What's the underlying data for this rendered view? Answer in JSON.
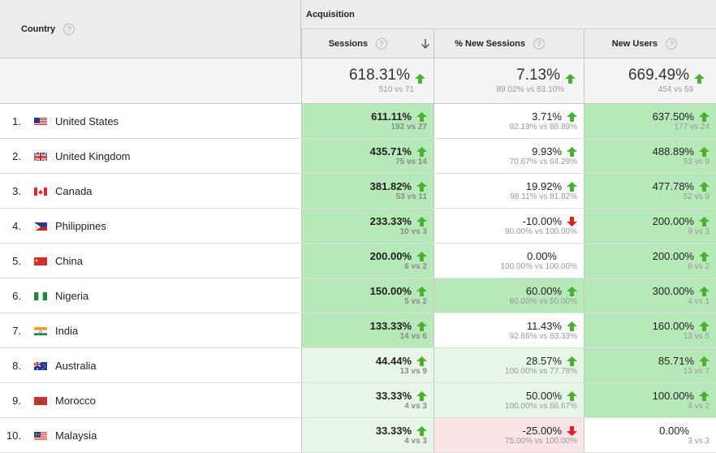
{
  "header": {
    "country": "Country",
    "group": "Acquisition",
    "col_sessions": "Sessions",
    "col_new_sessions": "% New Sessions",
    "col_new_users": "New Users",
    "help_glyph": "?"
  },
  "totals": {
    "sessions": {
      "value": "618.31%",
      "sub": "510 vs 71",
      "trend": "up"
    },
    "new_sessions": {
      "value": "7.13%",
      "sub": "89.02% vs 83.10%",
      "trend": "up"
    },
    "new_users": {
      "value": "669.49%",
      "sub": "454 vs 59",
      "trend": "up"
    }
  },
  "colors": {
    "up_arrow": "#4caf32",
    "down_arrow": "#e0211f",
    "strong_green": "#b6e8b8",
    "light_green": "#e8f6e8",
    "light_red": "#fbe4e6"
  },
  "rows": [
    {
      "rank": "1.",
      "country": "United States",
      "flag": "us",
      "sessions": {
        "value": "611.11%",
        "sub": "192 vs 27",
        "trend": "up",
        "bg": "strong"
      },
      "new_sessions": {
        "value": "3.71%",
        "sub": "92.19% vs 88.89%",
        "trend": "up",
        "bg": "none"
      },
      "new_users": {
        "value": "637.50%",
        "sub": "177 vs 24",
        "trend": "up",
        "bg": "strong"
      }
    },
    {
      "rank": "2.",
      "country": "United Kingdom",
      "flag": "gb",
      "sessions": {
        "value": "435.71%",
        "sub": "75 vs 14",
        "trend": "up",
        "bg": "strong"
      },
      "new_sessions": {
        "value": "9.93%",
        "sub": "70.67% vs 64.29%",
        "trend": "up",
        "bg": "none"
      },
      "new_users": {
        "value": "488.89%",
        "sub": "53 vs 9",
        "trend": "up",
        "bg": "strong"
      }
    },
    {
      "rank": "3.",
      "country": "Canada",
      "flag": "ca",
      "sessions": {
        "value": "381.82%",
        "sub": "53 vs 11",
        "trend": "up",
        "bg": "strong"
      },
      "new_sessions": {
        "value": "19.92%",
        "sub": "98.11% vs 81.82%",
        "trend": "up",
        "bg": "none"
      },
      "new_users": {
        "value": "477.78%",
        "sub": "52 vs 9",
        "trend": "up",
        "bg": "strong"
      }
    },
    {
      "rank": "4.",
      "country": "Philippines",
      "flag": "ph",
      "sessions": {
        "value": "233.33%",
        "sub": "10 vs 3",
        "trend": "up",
        "bg": "strong"
      },
      "new_sessions": {
        "value": "-10.00%",
        "sub": "90.00% vs 100.00%",
        "trend": "down",
        "bg": "none"
      },
      "new_users": {
        "value": "200.00%",
        "sub": "9 vs 3",
        "trend": "up",
        "bg": "strong"
      }
    },
    {
      "rank": "5.",
      "country": "China",
      "flag": "cn",
      "sessions": {
        "value": "200.00%",
        "sub": "6 vs 2",
        "trend": "up",
        "bg": "strong"
      },
      "new_sessions": {
        "value": "0.00%",
        "sub": "100.00% vs 100.00%",
        "trend": "none",
        "bg": "none"
      },
      "new_users": {
        "value": "200.00%",
        "sub": "6 vs 2",
        "trend": "up",
        "bg": "strong"
      }
    },
    {
      "rank": "6.",
      "country": "Nigeria",
      "flag": "ng",
      "sessions": {
        "value": "150.00%",
        "sub": "5 vs 2",
        "trend": "up",
        "bg": "strong"
      },
      "new_sessions": {
        "value": "60.00%",
        "sub": "80.00% vs 50.00%",
        "trend": "up",
        "bg": "strong"
      },
      "new_users": {
        "value": "300.00%",
        "sub": "4 vs 1",
        "trend": "up",
        "bg": "strong"
      }
    },
    {
      "rank": "7.",
      "country": "India",
      "flag": "in",
      "sessions": {
        "value": "133.33%",
        "sub": "14 vs 6",
        "trend": "up",
        "bg": "strong"
      },
      "new_sessions": {
        "value": "11.43%",
        "sub": "92.86% vs 83.33%",
        "trend": "up",
        "bg": "none"
      },
      "new_users": {
        "value": "160.00%",
        "sub": "13 vs 5",
        "trend": "up",
        "bg": "strong"
      }
    },
    {
      "rank": "8.",
      "country": "Australia",
      "flag": "au",
      "sessions": {
        "value": "44.44%",
        "sub": "13 vs 9",
        "trend": "up",
        "bg": "light"
      },
      "new_sessions": {
        "value": "28.57%",
        "sub": "100.00% vs 77.78%",
        "trend": "up",
        "bg": "light"
      },
      "new_users": {
        "value": "85.71%",
        "sub": "13 vs 7",
        "trend": "up",
        "bg": "strong"
      }
    },
    {
      "rank": "9.",
      "country": "Morocco",
      "flag": "ma",
      "sessions": {
        "value": "33.33%",
        "sub": "4 vs 3",
        "trend": "up",
        "bg": "light"
      },
      "new_sessions": {
        "value": "50.00%",
        "sub": "100.00% vs 66.67%",
        "trend": "up",
        "bg": "light"
      },
      "new_users": {
        "value": "100.00%",
        "sub": "4 vs 2",
        "trend": "up",
        "bg": "strong"
      }
    },
    {
      "rank": "10.",
      "country": "Malaysia",
      "flag": "my",
      "sessions": {
        "value": "33.33%",
        "sub": "4 vs 3",
        "trend": "up",
        "bg": "light"
      },
      "new_sessions": {
        "value": "-25.00%",
        "sub": "75.00% vs 100.00%",
        "trend": "down",
        "bg": "red"
      },
      "new_users": {
        "value": "0.00%",
        "sub": "3 vs 3",
        "trend": "none",
        "bg": "none"
      }
    }
  ]
}
